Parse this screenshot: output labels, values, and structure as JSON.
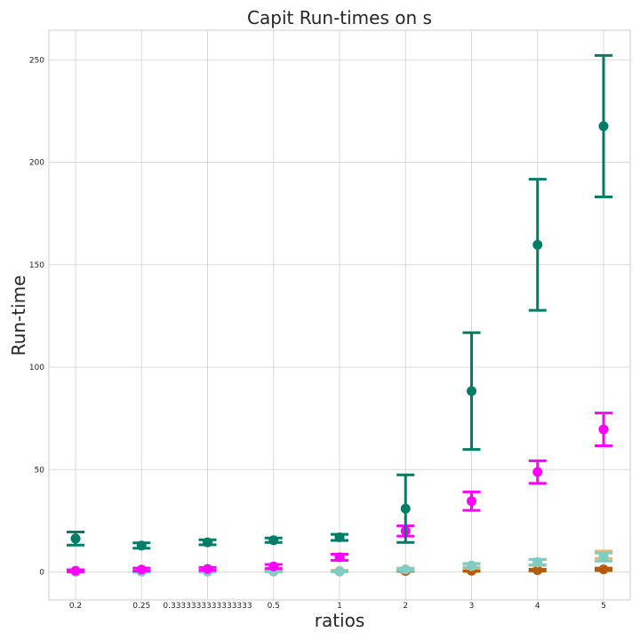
{
  "chart_data": {
    "type": "scatter",
    "title": "Capit Run-times on s",
    "xlabel": "ratios",
    "ylabel": "Run-time",
    "categories": [
      "0.2",
      "0.25",
      "0.3333333333333333",
      "0.5",
      "1",
      "2",
      "3",
      "4",
      "5"
    ],
    "ylim": [
      -13,
      265
    ],
    "yticks": [
      0,
      50,
      100,
      150,
      200,
      250
    ],
    "grid": true,
    "series": [
      {
        "color": "#b35c0e",
        "values": [
          0.2,
          0.2,
          0.2,
          0.3,
          0.3,
          0.5,
          0.6,
          0.9,
          1.3
        ],
        "err_low": [
          0.1,
          0.1,
          0.1,
          0.1,
          0.1,
          0.2,
          0.3,
          0.4,
          0.6
        ],
        "err_high": [
          0.1,
          0.1,
          0.1,
          0.1,
          0.1,
          0.2,
          0.3,
          0.4,
          0.6
        ]
      },
      {
        "color": "#f0b36b",
        "values": [
          0.4,
          0.4,
          0.3,
          0.5,
          0.5,
          1.3,
          2.8,
          4.6,
          8.4
        ],
        "err_low": [
          0.2,
          0.2,
          0.2,
          0.2,
          0.3,
          0.6,
          1.0,
          1.4,
          1.8
        ],
        "err_high": [
          0.2,
          0.2,
          0.2,
          0.2,
          0.3,
          0.6,
          1.0,
          1.4,
          1.8
        ]
      },
      {
        "color": "#7ecdc4",
        "values": [
          0.1,
          0.1,
          0.1,
          0.2,
          0.3,
          1.2,
          3.2,
          4.9,
          7.3
        ],
        "err_low": [
          0.1,
          0.1,
          0.1,
          0.1,
          0.2,
          0.5,
          1.0,
          1.3,
          2.0
        ],
        "err_high": [
          0.1,
          0.1,
          0.1,
          0.1,
          0.2,
          0.5,
          1.0,
          1.3,
          2.0
        ]
      },
      {
        "color": "#ff00ff",
        "values": [
          0.6,
          1.2,
          1.5,
          2.7,
          7.2,
          20.0,
          34.6,
          48.8,
          69.6
        ],
        "err_low": [
          0.5,
          0.7,
          0.7,
          1.0,
          1.5,
          2.5,
          4.5,
          5.5,
          8.0
        ],
        "err_high": [
          0.5,
          0.7,
          0.7,
          1.0,
          1.5,
          2.5,
          4.5,
          5.5,
          8.0
        ]
      },
      {
        "color": "#007d67",
        "values": [
          16.3,
          12.9,
          14.5,
          15.5,
          16.9,
          30.9,
          88.3,
          159.7,
          217.6
        ],
        "err_low": [
          3.2,
          1.3,
          1.2,
          1.1,
          1.5,
          16.5,
          28.5,
          32.0,
          34.5
        ],
        "err_high": [
          3.2,
          1.3,
          1.2,
          1.1,
          1.5,
          16.5,
          28.5,
          32.0,
          34.5
        ]
      }
    ]
  }
}
